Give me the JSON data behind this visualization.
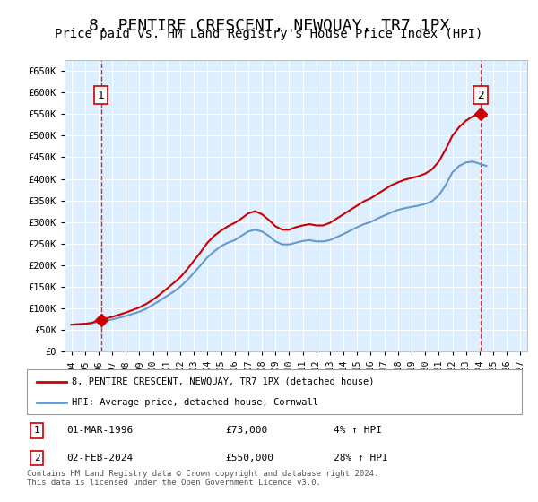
{
  "title": "8, PENTIRE CRESCENT, NEWQUAY, TR7 1PX",
  "subtitle": "Price paid vs. HM Land Registry's House Price Index (HPI)",
  "title_fontsize": 13,
  "subtitle_fontsize": 10,
  "ylabel_ticks": [
    "£0",
    "£50K",
    "£100K",
    "£150K",
    "£200K",
    "£250K",
    "£300K",
    "£350K",
    "£400K",
    "£450K",
    "£500K",
    "£550K",
    "£600K",
    "£650K"
  ],
  "ytick_vals": [
    0,
    50000,
    100000,
    150000,
    200000,
    250000,
    300000,
    350000,
    400000,
    450000,
    500000,
    550000,
    600000,
    650000
  ],
  "ylim": [
    0,
    675000
  ],
  "xlim_start": 1993.5,
  "xlim_end": 2027.5,
  "xtick_years": [
    1994,
    1995,
    1996,
    1997,
    1998,
    1999,
    2000,
    2001,
    2002,
    2003,
    2004,
    2005,
    2006,
    2007,
    2008,
    2009,
    2010,
    2011,
    2012,
    2013,
    2014,
    2015,
    2016,
    2017,
    2018,
    2019,
    2020,
    2021,
    2022,
    2023,
    2024,
    2025,
    2026,
    2027
  ],
  "hpi_color": "#6699cc",
  "price_color": "#cc0000",
  "grid_bg_color": "#ddeeff",
  "hatch_color": "#bbccdd",
  "point1_x": 1996.17,
  "point1_y": 73000,
  "point2_x": 2024.08,
  "point2_y": 550000,
  "legend_line1": "8, PENTIRE CRESCENT, NEWQUAY, TR7 1PX (detached house)",
  "legend_line2": "HPI: Average price, detached house, Cornwall",
  "ann1_label": "1",
  "ann1_date": "01-MAR-1996",
  "ann1_price": "£73,000",
  "ann1_hpi": "4% ↑ HPI",
  "ann2_label": "2",
  "ann2_date": "02-FEB-2024",
  "ann2_price": "£550,000",
  "ann2_hpi": "28% ↑ HPI",
  "footer": "Contains HM Land Registry data © Crown copyright and database right 2024.\nThis data is licensed under the Open Government Licence v3.0.",
  "hpi_years": [
    1994,
    1994.5,
    1995,
    1995.5,
    1996,
    1996.5,
    1997,
    1997.5,
    1998,
    1998.5,
    1999,
    1999.5,
    2000,
    2000.5,
    2001,
    2001.5,
    2002,
    2002.5,
    2003,
    2003.5,
    2004,
    2004.5,
    2005,
    2005.5,
    2006,
    2006.5,
    2007,
    2007.5,
    2008,
    2008.5,
    2009,
    2009.5,
    2010,
    2010.5,
    2011,
    2011.5,
    2012,
    2012.5,
    2013,
    2013.5,
    2014,
    2014.5,
    2015,
    2015.5,
    2016,
    2016.5,
    2017,
    2017.5,
    2018,
    2018.5,
    2019,
    2019.5,
    2020,
    2020.5,
    2021,
    2021.5,
    2022,
    2022.5,
    2023,
    2023.5,
    2024,
    2024.5
  ],
  "hpi_values": [
    62000,
    63000,
    64000,
    66000,
    68000,
    71000,
    74000,
    78000,
    82000,
    87000,
    92000,
    99000,
    108000,
    118000,
    128000,
    138000,
    150000,
    165000,
    182000,
    200000,
    218000,
    232000,
    244000,
    252000,
    258000,
    268000,
    278000,
    282000,
    278000,
    268000,
    255000,
    248000,
    248000,
    252000,
    256000,
    258000,
    255000,
    255000,
    258000,
    265000,
    272000,
    280000,
    288000,
    295000,
    300000,
    308000,
    315000,
    322000,
    328000,
    332000,
    335000,
    338000,
    342000,
    348000,
    362000,
    385000,
    415000,
    430000,
    438000,
    440000,
    435000,
    430000
  ],
  "price_years": [
    1994,
    1994.5,
    1995,
    1995.5,
    1996,
    1996.5,
    1997,
    1997.5,
    1998,
    1998.5,
    1999,
    1999.5,
    2000,
    2000.5,
    2001,
    2001.5,
    2002,
    2002.5,
    2003,
    2003.5,
    2004,
    2004.5,
    2005,
    2005.5,
    2006,
    2006.5,
    2007,
    2007.5,
    2008,
    2008.5,
    2009,
    2009.5,
    2010,
    2010.5,
    2011,
    2011.5,
    2012,
    2012.5,
    2013,
    2013.5,
    2014,
    2014.5,
    2015,
    2015.5,
    2016,
    2016.5,
    2017,
    2017.5,
    2018,
    2018.5,
    2019,
    2019.5,
    2020,
    2020.5,
    2021,
    2021.5,
    2022,
    2022.5,
    2023,
    2023.5,
    2024,
    2024.5
  ],
  "price_values": [
    62000,
    63000,
    64000,
    66000,
    73000,
    76000,
    80000,
    85000,
    90000,
    96000,
    102000,
    110000,
    120000,
    132000,
    145000,
    158000,
    172000,
    190000,
    210000,
    230000,
    252000,
    268000,
    280000,
    290000,
    298000,
    308000,
    320000,
    325000,
    318000,
    305000,
    290000,
    282000,
    282000,
    288000,
    292000,
    295000,
    292000,
    292000,
    298000,
    308000,
    318000,
    328000,
    338000,
    348000,
    355000,
    365000,
    375000,
    385000,
    392000,
    398000,
    402000,
    406000,
    412000,
    422000,
    440000,
    468000,
    500000,
    520000,
    535000,
    545000,
    550000,
    545000
  ]
}
